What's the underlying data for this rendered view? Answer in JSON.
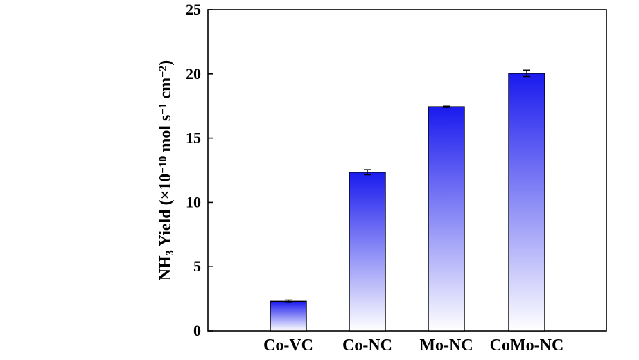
{
  "chart_data": {
    "type": "bar",
    "title": "",
    "xlabel": "",
    "ylabel": {
      "parts": [
        {
          "text": "NH",
          "style": "normal"
        },
        {
          "text": "3",
          "style": "sub"
        },
        {
          "text": " Yield (×10",
          "style": "normal"
        },
        {
          "text": "−10",
          "style": "sup"
        },
        {
          "text": " mol s",
          "style": "normal"
        },
        {
          "text": "−1",
          "style": "sup"
        },
        {
          "text": " cm",
          "style": "normal"
        },
        {
          "text": "−2",
          "style": "sup"
        },
        {
          "text": ")",
          "style": "normal"
        }
      ]
    },
    "ylim": [
      0,
      25
    ],
    "yticks": [
      0,
      5,
      10,
      15,
      20,
      25
    ],
    "ytick_labels": [
      "0",
      "5",
      "10",
      "15",
      "20",
      "25"
    ],
    "categories": [
      "Co-VC",
      "Co-NC",
      "Mo-NC",
      "CoMo-NC"
    ],
    "values": [
      2.3,
      12.35,
      17.45,
      20.05
    ],
    "errors": [
      0.1,
      0.2,
      0.05,
      0.25
    ],
    "bar_gradient": {
      "top": "#1a1aee",
      "bottom": "#ffffff"
    },
    "grid": false,
    "legend": "none"
  }
}
